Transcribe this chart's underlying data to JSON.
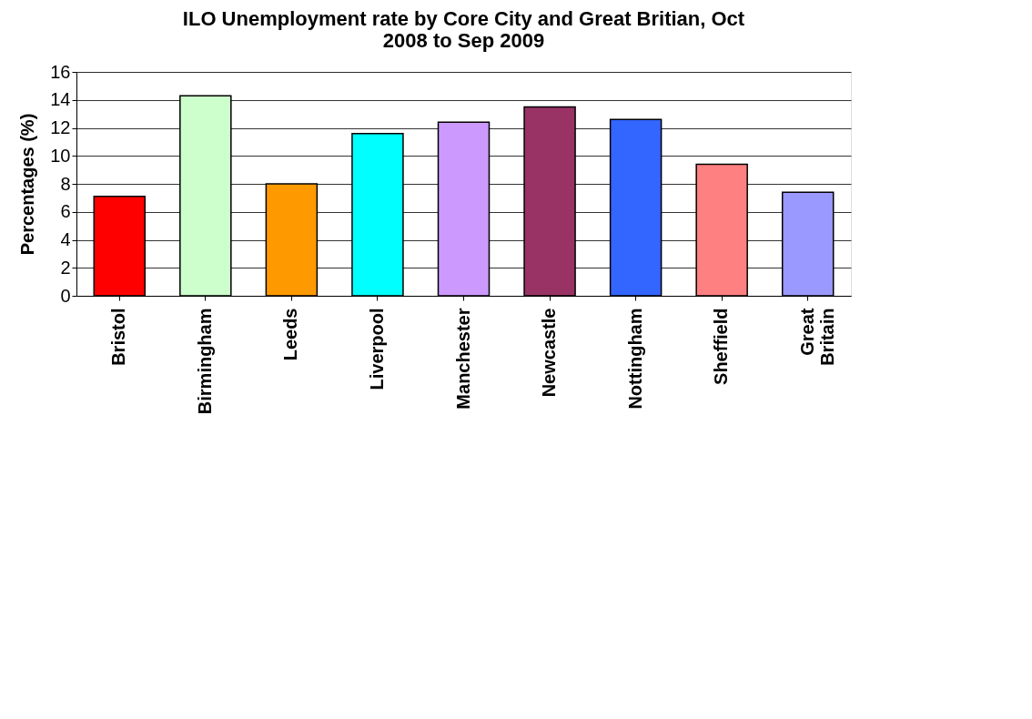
{
  "chart_data": {
    "type": "bar",
    "title": "ILO Unemployment rate by Core City and Great Britian, Oct 2008 to Sep 2009",
    "ylabel": "Percentages (%)",
    "categories": [
      "Bristol",
      "Birmingham",
      "Leeds",
      "Liverpool",
      "Manchester",
      "Newcastle",
      "Nottingham",
      "Sheffield",
      "Great Britain"
    ],
    "values": [
      7.1,
      14.3,
      8.0,
      11.6,
      12.4,
      13.5,
      12.6,
      9.4,
      7.4
    ],
    "colors": [
      "#ff0000",
      "#ccffcc",
      "#ff9900",
      "#00ffff",
      "#cc99ff",
      "#993366",
      "#3366ff",
      "#ff8080",
      "#9999ff"
    ],
    "ylim": [
      0,
      16
    ],
    "yticks": [
      0,
      2,
      4,
      6,
      8,
      10,
      12,
      14,
      16
    ],
    "grid": "y"
  }
}
